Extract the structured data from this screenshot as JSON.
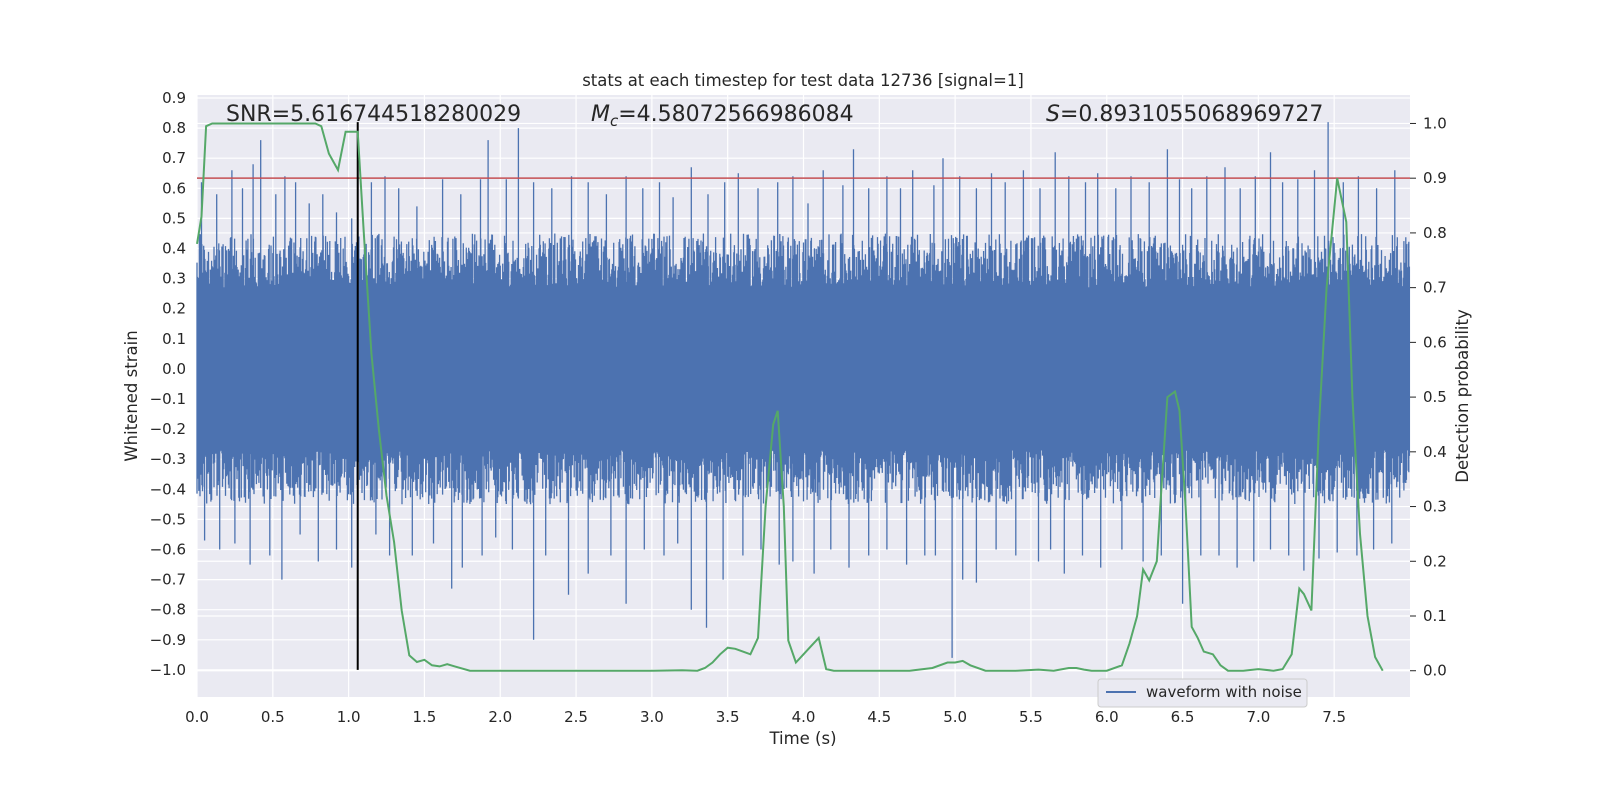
{
  "chart_data": {
    "type": "line",
    "title": "stats at each timestep for test data 12736 [signal=1]",
    "xlabel": "Time (s)",
    "ylabel": "Whitened strain",
    "ylabel_right": "Detection probability",
    "xlim": [
      0.0,
      8.0
    ],
    "ylim": [
      -1.09,
      0.91
    ],
    "ylim_right": [
      -0.048,
      1.052
    ],
    "x_ticks": [
      "0.0",
      "0.5",
      "1.0",
      "1.5",
      "2.0",
      "2.5",
      "3.0",
      "3.5",
      "4.0",
      "4.5",
      "5.0",
      "5.5",
      "6.0",
      "6.5",
      "7.0",
      "7.5"
    ],
    "y_ticks": [
      "0.9",
      "0.8",
      "0.7",
      "0.6",
      "0.5",
      "0.4",
      "0.3",
      "0.2",
      "0.1",
      "0.0",
      "-0.1",
      "-0.2",
      "-0.3",
      "-0.4",
      "-0.5",
      "-0.6",
      "-0.7",
      "-0.8",
      "-0.9",
      "-1.0"
    ],
    "y_ticks_right": [
      "1.0",
      "0.9",
      "0.8",
      "0.7",
      "0.6",
      "0.5",
      "0.4",
      "0.3",
      "0.2",
      "0.1",
      "0.0"
    ],
    "annotations": {
      "snr": "SNR=5.616744518280029",
      "mc_symbol": "M",
      "mc_sub": "c",
      "mc_value": "=4.58072566986084",
      "s_symbol": "S",
      "s_value": "=0.8931055068969727"
    },
    "legend": {
      "label": "waveform with noise",
      "placement": "lower right"
    },
    "threshold": {
      "value": 0.9,
      "axis": "right",
      "color": "#c44e52"
    },
    "marker_line": {
      "x": 1.06,
      "y_from": -1.0,
      "y_to": 0.82,
      "color": "#000000"
    },
    "series": [
      {
        "name": "waveform with noise",
        "axis": "left",
        "color": "#4c72b0",
        "render": "dense-noise-band",
        "band_core": 0.27,
        "band_extent": 0.45,
        "spikes_up": [
          [
            0.03,
            0.62
          ],
          [
            0.13,
            0.58
          ],
          [
            0.23,
            0.66
          ],
          [
            0.3,
            0.6
          ],
          [
            0.37,
            0.68
          ],
          [
            0.42,
            0.76
          ],
          [
            0.52,
            0.58
          ],
          [
            0.58,
            0.64
          ],
          [
            0.65,
            0.62
          ],
          [
            0.74,
            0.55
          ],
          [
            0.83,
            0.58
          ],
          [
            0.92,
            0.52
          ],
          [
            1.02,
            0.5
          ],
          [
            1.15,
            0.62
          ],
          [
            1.24,
            0.64
          ],
          [
            1.33,
            0.6
          ],
          [
            1.45,
            0.54
          ],
          [
            1.62,
            0.63
          ],
          [
            1.74,
            0.58
          ],
          [
            1.87,
            0.63
          ],
          [
            1.92,
            0.76
          ],
          [
            2.04,
            0.63
          ],
          [
            2.12,
            0.8
          ],
          [
            2.22,
            0.62
          ],
          [
            2.34,
            0.6
          ],
          [
            2.47,
            0.64
          ],
          [
            2.58,
            0.62
          ],
          [
            2.7,
            0.58
          ],
          [
            2.83,
            0.64
          ],
          [
            2.94,
            0.6
          ],
          [
            3.05,
            0.62
          ],
          [
            3.14,
            0.57
          ],
          [
            3.26,
            0.67
          ],
          [
            3.37,
            0.58
          ],
          [
            3.48,
            0.62
          ],
          [
            3.57,
            0.65
          ],
          [
            3.7,
            0.6
          ],
          [
            3.83,
            0.62
          ],
          [
            3.93,
            0.64
          ],
          [
            4.03,
            0.55
          ],
          [
            4.13,
            0.66
          ],
          [
            4.26,
            0.61
          ],
          [
            4.33,
            0.73
          ],
          [
            4.43,
            0.6
          ],
          [
            4.55,
            0.64
          ],
          [
            4.64,
            0.6
          ],
          [
            4.72,
            0.66
          ],
          [
            4.86,
            0.61
          ],
          [
            4.92,
            0.7
          ],
          [
            5.03,
            0.64
          ],
          [
            5.14,
            0.6
          ],
          [
            5.24,
            0.65
          ],
          [
            5.33,
            0.62
          ],
          [
            5.45,
            0.66
          ],
          [
            5.56,
            0.6
          ],
          [
            5.66,
            0.72
          ],
          [
            5.75,
            0.64
          ],
          [
            5.86,
            0.62
          ],
          [
            5.94,
            0.65
          ],
          [
            6.06,
            0.6
          ],
          [
            6.16,
            0.64
          ],
          [
            6.28,
            0.62
          ],
          [
            6.4,
            0.73
          ],
          [
            6.48,
            0.63
          ],
          [
            6.56,
            0.6
          ],
          [
            6.66,
            0.64
          ],
          [
            6.78,
            0.67
          ],
          [
            6.88,
            0.6
          ],
          [
            6.98,
            0.64
          ],
          [
            7.08,
            0.72
          ],
          [
            7.16,
            0.62
          ],
          [
            7.26,
            0.63
          ],
          [
            7.37,
            0.66
          ],
          [
            7.46,
            0.82
          ],
          [
            7.56,
            0.62
          ],
          [
            7.66,
            0.64
          ],
          [
            7.78,
            0.6
          ],
          [
            7.9,
            0.66
          ]
        ],
        "spikes_down": [
          [
            0.05,
            -0.57
          ],
          [
            0.15,
            -0.6
          ],
          [
            0.25,
            -0.58
          ],
          [
            0.35,
            -0.65
          ],
          [
            0.48,
            -0.62
          ],
          [
            0.56,
            -0.7
          ],
          [
            0.68,
            -0.55
          ],
          [
            0.8,
            -0.64
          ],
          [
            0.92,
            -0.6
          ],
          [
            1.02,
            -0.66
          ],
          [
            1.18,
            -0.55
          ],
          [
            1.27,
            -0.62
          ],
          [
            1.42,
            -0.62
          ],
          [
            1.56,
            -0.58
          ],
          [
            1.68,
            -0.73
          ],
          [
            1.75,
            -0.66
          ],
          [
            1.88,
            -0.62
          ],
          [
            1.97,
            -0.56
          ],
          [
            2.08,
            -0.6
          ],
          [
            2.22,
            -0.9
          ],
          [
            2.3,
            -0.62
          ],
          [
            2.45,
            -0.75
          ],
          [
            2.58,
            -0.68
          ],
          [
            2.73,
            -0.62
          ],
          [
            2.83,
            -0.78
          ],
          [
            2.95,
            -0.6
          ],
          [
            3.08,
            -0.62
          ],
          [
            3.17,
            -0.58
          ],
          [
            3.26,
            -0.8
          ],
          [
            3.36,
            -0.86
          ],
          [
            3.47,
            -0.7
          ],
          [
            3.6,
            -0.62
          ],
          [
            3.72,
            -0.6
          ],
          [
            3.84,
            -0.65
          ],
          [
            3.93,
            -0.64
          ],
          [
            4.07,
            -0.68
          ],
          [
            4.18,
            -0.6
          ],
          [
            4.3,
            -0.66
          ],
          [
            4.43,
            -0.62
          ],
          [
            4.55,
            -0.6
          ],
          [
            4.68,
            -0.65
          ],
          [
            4.8,
            -0.62
          ],
          [
            4.87,
            -0.62
          ],
          [
            4.98,
            -0.96
          ],
          [
            5.05,
            -0.7
          ],
          [
            5.14,
            -0.71
          ],
          [
            5.27,
            -0.6
          ],
          [
            5.4,
            -0.62
          ],
          [
            5.55,
            -0.64
          ],
          [
            5.63,
            -0.6
          ],
          [
            5.72,
            -0.68
          ],
          [
            5.84,
            -0.62
          ],
          [
            5.96,
            -0.66
          ],
          [
            6.1,
            -0.6
          ],
          [
            6.24,
            -0.64
          ],
          [
            6.36,
            -0.62
          ],
          [
            6.5,
            -0.78
          ],
          [
            6.62,
            -0.62
          ],
          [
            6.74,
            -0.62
          ],
          [
            6.86,
            -0.66
          ],
          [
            6.97,
            -0.64
          ],
          [
            7.08,
            -0.6
          ],
          [
            7.2,
            -0.62
          ],
          [
            7.3,
            -0.67
          ],
          [
            7.4,
            -0.63
          ],
          [
            7.52,
            -0.61
          ],
          [
            7.65,
            -0.62
          ],
          [
            7.76,
            -0.6
          ],
          [
            7.88,
            -0.58
          ]
        ]
      },
      {
        "name": "",
        "axis": "right",
        "color": "#55a868",
        "points": [
          [
            0.0,
            0.78
          ],
          [
            0.03,
            0.83
          ],
          [
            0.06,
            0.995
          ],
          [
            0.1,
            1.0
          ],
          [
            0.15,
            1.0
          ],
          [
            0.22,
            1.0
          ],
          [
            0.3,
            1.0
          ],
          [
            0.4,
            1.0
          ],
          [
            0.5,
            1.0
          ],
          [
            0.6,
            1.0
          ],
          [
            0.7,
            1.0
          ],
          [
            0.78,
            1.0
          ],
          [
            0.82,
            0.995
          ],
          [
            0.87,
            0.945
          ],
          [
            0.93,
            0.915
          ],
          [
            0.98,
            0.985
          ],
          [
            1.02,
            0.985
          ],
          [
            1.06,
            0.985
          ],
          [
            1.1,
            0.8
          ],
          [
            1.15,
            0.58
          ],
          [
            1.2,
            0.44
          ],
          [
            1.25,
            0.32
          ],
          [
            1.3,
            0.235
          ],
          [
            1.35,
            0.11
          ],
          [
            1.4,
            0.028
          ],
          [
            1.45,
            0.016
          ],
          [
            1.5,
            0.02
          ],
          [
            1.55,
            0.01
          ],
          [
            1.6,
            0.008
          ],
          [
            1.65,
            0.012
          ],
          [
            1.7,
            0.008
          ],
          [
            1.8,
            0.0
          ],
          [
            1.9,
            0.0
          ],
          [
            2.0,
            0.0
          ],
          [
            2.2,
            0.0
          ],
          [
            2.5,
            0.0
          ],
          [
            2.8,
            0.0
          ],
          [
            3.0,
            0.0
          ],
          [
            3.2,
            0.001
          ],
          [
            3.3,
            0.0
          ],
          [
            3.35,
            0.005
          ],
          [
            3.4,
            0.015
          ],
          [
            3.45,
            0.03
          ],
          [
            3.5,
            0.042
          ],
          [
            3.55,
            0.04
          ],
          [
            3.6,
            0.035
          ],
          [
            3.65,
            0.03
          ],
          [
            3.7,
            0.06
          ],
          [
            3.75,
            0.3
          ],
          [
            3.8,
            0.45
          ],
          [
            3.83,
            0.475
          ],
          [
            3.87,
            0.3
          ],
          [
            3.9,
            0.055
          ],
          [
            3.95,
            0.015
          ],
          [
            4.0,
            0.03
          ],
          [
            4.05,
            0.045
          ],
          [
            4.1,
            0.06
          ],
          [
            4.15,
            0.003
          ],
          [
            4.2,
            0.0
          ],
          [
            4.4,
            0.0
          ],
          [
            4.7,
            0.0
          ],
          [
            4.85,
            0.005
          ],
          [
            4.95,
            0.015
          ],
          [
            5.0,
            0.015
          ],
          [
            5.05,
            0.018
          ],
          [
            5.1,
            0.01
          ],
          [
            5.2,
            0.0
          ],
          [
            5.4,
            0.0
          ],
          [
            5.55,
            0.002
          ],
          [
            5.65,
            0.0
          ],
          [
            5.75,
            0.005
          ],
          [
            5.8,
            0.005
          ],
          [
            5.85,
            0.002
          ],
          [
            5.9,
            0.0
          ],
          [
            6.0,
            0.0
          ],
          [
            6.1,
            0.01
          ],
          [
            6.15,
            0.05
          ],
          [
            6.2,
            0.1
          ],
          [
            6.24,
            0.185
          ],
          [
            6.28,
            0.165
          ],
          [
            6.33,
            0.2
          ],
          [
            6.36,
            0.33
          ],
          [
            6.4,
            0.5
          ],
          [
            6.45,
            0.51
          ],
          [
            6.48,
            0.475
          ],
          [
            6.52,
            0.3
          ],
          [
            6.56,
            0.08
          ],
          [
            6.6,
            0.06
          ],
          [
            6.64,
            0.035
          ],
          [
            6.7,
            0.03
          ],
          [
            6.75,
            0.01
          ],
          [
            6.8,
            0.0
          ],
          [
            6.9,
            0.0
          ],
          [
            7.0,
            0.003
          ],
          [
            7.1,
            0.0
          ],
          [
            7.16,
            0.003
          ],
          [
            7.22,
            0.03
          ],
          [
            7.27,
            0.15
          ],
          [
            7.3,
            0.14
          ],
          [
            7.35,
            0.11
          ],
          [
            7.4,
            0.45
          ],
          [
            7.45,
            0.7
          ],
          [
            7.52,
            0.9
          ],
          [
            7.58,
            0.82
          ],
          [
            7.62,
            0.5
          ],
          [
            7.67,
            0.25
          ],
          [
            7.72,
            0.1
          ],
          [
            7.77,
            0.025
          ],
          [
            7.82,
            0.0
          ]
        ]
      }
    ]
  }
}
